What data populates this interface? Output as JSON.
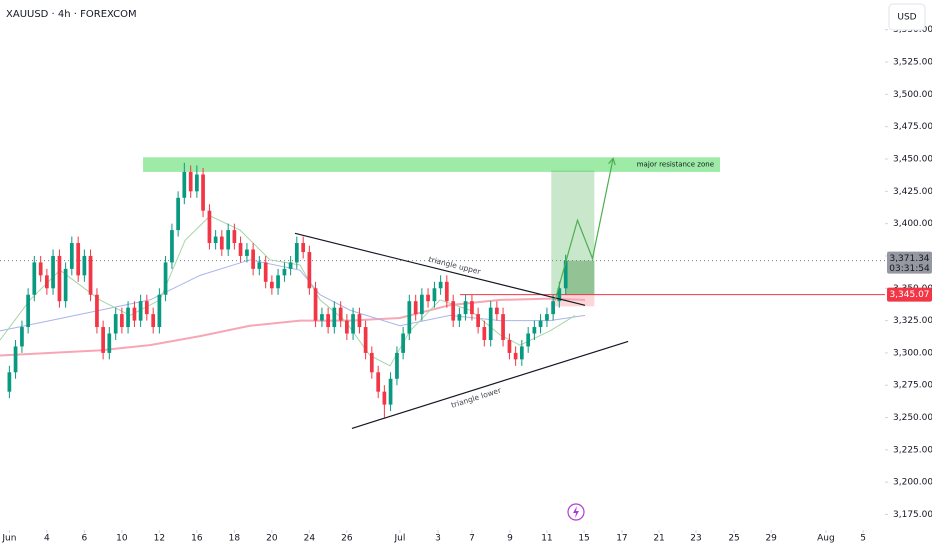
{
  "chart_data": {
    "type": "candlestick",
    "title": "XAUUSD · 4h · FOREXCOM",
    "currency": "USD",
    "up_color": "#089981",
    "down_color": "#f23645",
    "x": [
      0,
      0.33,
      0.67,
      1,
      1.33,
      1.67,
      2,
      2.33,
      2.67,
      3,
      3.33,
      3.67,
      4,
      4.33,
      4.67,
      5,
      5.33,
      5.67,
      6,
      6.33,
      6.67,
      7,
      7.33,
      7.67,
      8,
      8.33,
      8.67,
      9,
      9.33,
      9.67,
      10,
      10.33,
      10.67,
      11,
      11.33,
      11.67,
      12,
      12.33,
      12.67,
      13,
      13.33,
      13.67,
      14,
      14.33,
      14.67,
      15,
      15.33,
      15.67,
      16,
      16.33,
      16.67,
      17,
      17.33,
      17.67,
      18,
      18.33,
      18.67,
      19,
      19.33,
      19.67,
      20,
      20.33,
      20.67,
      21,
      21.33,
      21.67,
      22,
      22.33,
      22.67,
      23,
      23.33,
      23.67,
      24,
      24.33,
      24.67,
      25,
      25.33,
      25.67,
      26,
      26.33,
      26.67,
      27,
      27.33,
      27.67,
      28,
      28.33,
      28.67,
      29,
      29.33,
      29.67
    ],
    "open": [
      3270,
      3285,
      3305,
      3320,
      3345,
      3370,
      3360,
      3350,
      3375,
      3340,
      3365,
      3385,
      3360,
      3375,
      3345,
      3320,
      3300,
      3315,
      3330,
      3320,
      3335,
      3325,
      3340,
      3330,
      3320,
      3345,
      3370,
      3395,
      3420,
      3440,
      3425,
      3438,
      3410,
      3385,
      3390,
      3380,
      3395,
      3385,
      3375,
      3380,
      3365,
      3370,
      3355,
      3350,
      3360,
      3365,
      3370,
      3385,
      3378,
      3350,
      3325,
      3330,
      3320,
      3335,
      3325,
      3315,
      3330,
      3320,
      3300,
      3285,
      3270,
      3260,
      3280,
      3300,
      3315,
      3340,
      3330,
      3345,
      3340,
      3350,
      3355,
      3340,
      3325,
      3330,
      3340,
      3330,
      3320,
      3310,
      3335,
      3330,
      3310,
      3300,
      3295,
      3305,
      3315,
      3320,
      3325,
      3330,
      3340,
      3350
    ],
    "high": [
      3290,
      3310,
      3325,
      3350,
      3375,
      3375,
      3365,
      3380,
      3380,
      3370,
      3390,
      3390,
      3380,
      3380,
      3350,
      3325,
      3320,
      3335,
      3335,
      3340,
      3340,
      3345,
      3345,
      3335,
      3350,
      3375,
      3400,
      3425,
      3447,
      3445,
      3445,
      3443,
      3415,
      3395,
      3395,
      3400,
      3400,
      3390,
      3385,
      3385,
      3375,
      3375,
      3360,
      3365,
      3370,
      3375,
      3390,
      3390,
      3383,
      3355,
      3335,
      3335,
      3340,
      3340,
      3330,
      3335,
      3335,
      3325,
      3305,
      3290,
      3275,
      3285,
      3305,
      3320,
      3345,
      3345,
      3350,
      3350,
      3355,
      3360,
      3360,
      3345,
      3335,
      3345,
      3345,
      3335,
      3325,
      3340,
      3340,
      3335,
      3315,
      3305,
      3310,
      3320,
      3325,
      3330,
      3335,
      3345,
      3355,
      3376
    ],
    "low": [
      3265,
      3280,
      3300,
      3315,
      3340,
      3355,
      3345,
      3345,
      3335,
      3335,
      3360,
      3355,
      3355,
      3340,
      3315,
      3295,
      3295,
      3310,
      3315,
      3315,
      3320,
      3320,
      3325,
      3315,
      3315,
      3340,
      3365,
      3390,
      3415,
      3420,
      3420,
      3405,
      3380,
      3380,
      3375,
      3375,
      3380,
      3370,
      3370,
      3360,
      3360,
      3350,
      3345,
      3345,
      3355,
      3360,
      3365,
      3373,
      3345,
      3320,
      3320,
      3315,
      3315,
      3320,
      3310,
      3310,
      3315,
      3295,
      3280,
      3265,
      3250,
      3255,
      3275,
      3295,
      3310,
      3325,
      3325,
      3335,
      3335,
      3345,
      3335,
      3320,
      3320,
      3325,
      3325,
      3315,
      3305,
      3305,
      3325,
      3305,
      3295,
      3290,
      3290,
      3300,
      3310,
      3315,
      3320,
      3325,
      3335,
      3345
    ],
    "close": [
      3285,
      3305,
      3320,
      3345,
      3370,
      3360,
      3350,
      3375,
      3340,
      3365,
      3385,
      3360,
      3375,
      3345,
      3320,
      3300,
      3315,
      3330,
      3320,
      3335,
      3325,
      3340,
      3330,
      3320,
      3345,
      3370,
      3395,
      3420,
      3440,
      3425,
      3438,
      3410,
      3385,
      3390,
      3380,
      3395,
      3385,
      3375,
      3380,
      3365,
      3370,
      3355,
      3350,
      3360,
      3365,
      3370,
      3385,
      3378,
      3350,
      3325,
      3330,
      3320,
      3335,
      3325,
      3315,
      3330,
      3320,
      3300,
      3285,
      3270,
      3260,
      3280,
      3300,
      3315,
      3340,
      3330,
      3345,
      3340,
      3350,
      3355,
      3340,
      3325,
      3330,
      3340,
      3330,
      3320,
      3310,
      3335,
      3330,
      3310,
      3300,
      3295,
      3305,
      3315,
      3320,
      3325,
      3330,
      3340,
      3350,
      3371.34
    ],
    "last_price_label": "3,371.34",
    "countdown": "03:31:54",
    "xlim": [
      -0.5,
      46.7
    ],
    "ylim": [
      3163,
      3573
    ],
    "xticks": [
      {
        "value": 0,
        "label": "Jun"
      },
      {
        "value": 2,
        "label": "4"
      },
      {
        "value": 4,
        "label": "6"
      },
      {
        "value": 6,
        "label": "10"
      },
      {
        "value": 8,
        "label": "12"
      },
      {
        "value": 10,
        "label": "16"
      },
      {
        "value": 12,
        "label": "18"
      },
      {
        "value": 14,
        "label": "20"
      },
      {
        "value": 16,
        "label": "24"
      },
      {
        "value": 18,
        "label": "26"
      },
      {
        "value": 20.83,
        "label": "Jul"
      },
      {
        "value": 22.86,
        "label": "3"
      },
      {
        "value": 24.67,
        "label": "7"
      },
      {
        "value": 26.7,
        "label": "9"
      },
      {
        "value": 28.67,
        "label": "11"
      },
      {
        "value": 30.65,
        "label": "15"
      },
      {
        "value": 32.67,
        "label": "17"
      },
      {
        "value": 34.65,
        "label": "21"
      },
      {
        "value": 36.62,
        "label": "23"
      },
      {
        "value": 38.65,
        "label": "25"
      },
      {
        "value": 40.63,
        "label": "29"
      },
      {
        "value": 43.55,
        "label": "Aug"
      },
      {
        "value": 45.53,
        "label": "5"
      }
    ],
    "yticks": [
      {
        "value": 3175,
        "label": "3,175.00"
      },
      {
        "value": 3200,
        "label": "3,200.00"
      },
      {
        "value": 3225,
        "label": "3,225.00"
      },
      {
        "value": 3250,
        "label": "3,250.00"
      },
      {
        "value": 3275,
        "label": "3,275.00"
      },
      {
        "value": 3300,
        "label": "3,300.00"
      },
      {
        "value": 3325,
        "label": "3,325.00"
      },
      {
        "value": 3350,
        "label": "3,350.00"
      },
      {
        "value": 3375,
        "label": "3,375.00"
      },
      {
        "value": 3400,
        "label": "3,400.00"
      },
      {
        "value": 3425,
        "label": "3,425.00"
      },
      {
        "value": 3450,
        "label": "3,450.00"
      },
      {
        "value": 3475,
        "label": "3,475.00"
      },
      {
        "value": 3500,
        "label": "3,500.00"
      },
      {
        "value": 3525,
        "label": "3,525.00"
      },
      {
        "value": 3550,
        "label": "3,550.00"
      }
    ],
    "moving_averages": [
      {
        "color": "#f7a6b4",
        "x": [
          -0.5,
          4.83,
          7.5,
          10.17,
          12.83,
          15.5,
          18.17,
          20.83,
          23.5,
          26.17,
          28.83,
          30.7
        ],
        "values": [
          3298,
          3302,
          3306,
          3313,
          3321,
          3325,
          3325,
          3327,
          3337,
          3341,
          3342,
          3341
        ]
      },
      {
        "color": "#a9b4ec",
        "x": [
          -0.5,
          2.17,
          4.83,
          7.5,
          10.17,
          12.83,
          15.5,
          16.57,
          18.17,
          20.83,
          23.5,
          26.17,
          28.83,
          30.7
        ],
        "values": [
          3317,
          3325,
          3333,
          3341,
          3360,
          3372,
          3364,
          3345,
          3333,
          3321,
          3329,
          3325,
          3325,
          3329
        ]
      },
      {
        "color": "#a5d6a7",
        "x": [
          -0.5,
          1.1,
          2.7,
          4.83,
          6.43,
          8.03,
          9.37,
          10.7,
          12.3,
          13.9,
          15.5,
          16.57,
          17.9,
          19.23,
          20.3,
          21.37,
          22.97,
          24.57,
          26.17,
          27.23,
          28.83,
          30.17
        ],
        "values": [
          3310,
          3341,
          3364,
          3341,
          3329,
          3341,
          3387,
          3406,
          3395,
          3372,
          3368,
          3341,
          3325,
          3298,
          3290,
          3317,
          3341,
          3333,
          3314,
          3306,
          3317,
          3329
        ]
      }
    ],
    "resistance_zone": {
      "label": "major resistance zone",
      "color": "#7ee389",
      "x": [
        7.13,
        37.9
      ],
      "range": [
        3440,
        3451.3
      ]
    },
    "trendlines": [
      {
        "label": "triangle upper",
        "x": [
          15.23,
          30.7
        ],
        "values": [
          3392.5,
          3336.8
        ]
      },
      {
        "label": "triangle lower",
        "x": [
          18.27,
          33.0
        ],
        "values": [
          3241.6,
          3308.9
        ]
      }
    ],
    "position": {
      "x": [
        28.9,
        31.2
      ],
      "entry": 3345.07,
      "entry_label": "3,345.07",
      "stop": 3336,
      "target": 3441,
      "line_start": 24.03
    },
    "projection": {
      "color": "#4caf50",
      "x": [
        29.1,
        30.3,
        31.1,
        32.2
      ],
      "values": [
        3340.6,
        3402.6,
        3373,
        3450.5
      ]
    }
  }
}
